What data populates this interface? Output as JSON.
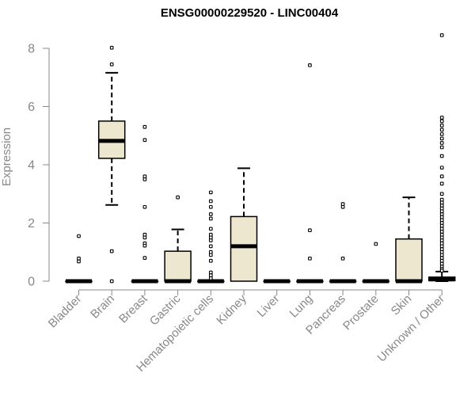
{
  "chart_data": {
    "type": "boxplot",
    "title": "ENSG00000229520 - LINC00404",
    "xlabel": "",
    "ylabel": "Expression",
    "ylim": [
      0,
      8.5
    ],
    "yticks": [
      0,
      2,
      4,
      6,
      8
    ],
    "grid": false,
    "box_color": "#EDE7CF",
    "outline_color": "#000000",
    "axis_label_color": "#888888",
    "categories": [
      "Bladder",
      "Brain",
      "Breast",
      "Gastric",
      "Hematopoietic cells",
      "Kidney",
      "Liver",
      "Lung",
      "Pancreas",
      "Prostate",
      "Skin",
      "Unknown / Other"
    ],
    "boxes": [
      {
        "category": "Bladder",
        "q1": 0,
        "median": 0,
        "q3": 0,
        "whisker_low": 0,
        "whisker_high": 0,
        "outliers": [
          1.55,
          0.78,
          0.68
        ]
      },
      {
        "category": "Brain",
        "q1": 4.22,
        "median": 4.82,
        "q3": 5.5,
        "whisker_low": 2.62,
        "whisker_high": 7.16,
        "outliers": [
          8.02,
          7.45,
          1.03,
          0.0
        ]
      },
      {
        "category": "Breast",
        "q1": 0,
        "median": 0,
        "q3": 0,
        "whisker_low": 0,
        "whisker_high": 0,
        "outliers": [
          5.3,
          4.85,
          3.6,
          3.5,
          2.55,
          1.6,
          1.5,
          1.3,
          1.22,
          0.8
        ]
      },
      {
        "category": "Gastric",
        "q1": 0,
        "median": 0,
        "q3": 1.03,
        "whisker_low": 0,
        "whisker_high": 1.78,
        "outliers": [
          2.88
        ]
      },
      {
        "category": "Hematopoietic cells",
        "q1": 0,
        "median": 0,
        "q3": 0,
        "whisker_low": 0,
        "whisker_high": 0,
        "outliers": [
          3.05,
          2.75,
          2.55,
          2.3,
          2.15,
          1.8,
          1.6,
          1.5,
          1.4,
          1.2,
          1.0,
          0.9,
          0.7,
          0.3,
          0.2,
          0.1
        ]
      },
      {
        "category": "Kidney",
        "q1": 0,
        "median": 1.2,
        "q3": 2.22,
        "whisker_low": 0,
        "whisker_high": 3.88,
        "outliers": []
      },
      {
        "category": "Liver",
        "q1": 0,
        "median": 0,
        "q3": 0,
        "whisker_low": 0,
        "whisker_high": 0,
        "outliers": []
      },
      {
        "category": "Lung",
        "q1": 0,
        "median": 0,
        "q3": 0,
        "whisker_low": 0,
        "whisker_high": 0,
        "outliers": [
          7.42,
          1.75,
          0.78
        ]
      },
      {
        "category": "Pancreas",
        "q1": 0,
        "median": 0,
        "q3": 0,
        "whisker_low": 0,
        "whisker_high": 0,
        "outliers": [
          2.65,
          2.55,
          0.78
        ]
      },
      {
        "category": "Prostate",
        "q1": 0,
        "median": 0,
        "q3": 0,
        "whisker_low": 0,
        "whisker_high": 0,
        "outliers": [
          1.28
        ]
      },
      {
        "category": "Skin",
        "q1": 0,
        "median": 0,
        "q3": 1.45,
        "whisker_low": 0,
        "whisker_high": 2.88,
        "outliers": []
      },
      {
        "category": "Unknown / Other",
        "q1": 0.02,
        "median": 0.06,
        "q3": 0.14,
        "whisker_low": 0,
        "whisker_high": 0.33,
        "outliers": [
          8.45,
          5.62,
          5.5,
          5.35,
          5.2,
          5.05,
          4.9,
          4.75,
          4.6,
          4.3,
          3.9,
          3.6,
          3.35,
          3.0,
          2.8,
          2.7,
          2.6,
          2.5,
          2.4,
          2.3,
          2.2,
          2.1,
          2.0,
          1.9,
          1.8,
          1.7,
          1.6,
          1.5,
          1.4,
          1.3,
          1.2,
          1.1,
          1.0,
          0.9,
          0.8,
          0.7,
          0.6,
          0.5,
          0.42,
          0.36
        ]
      }
    ]
  }
}
